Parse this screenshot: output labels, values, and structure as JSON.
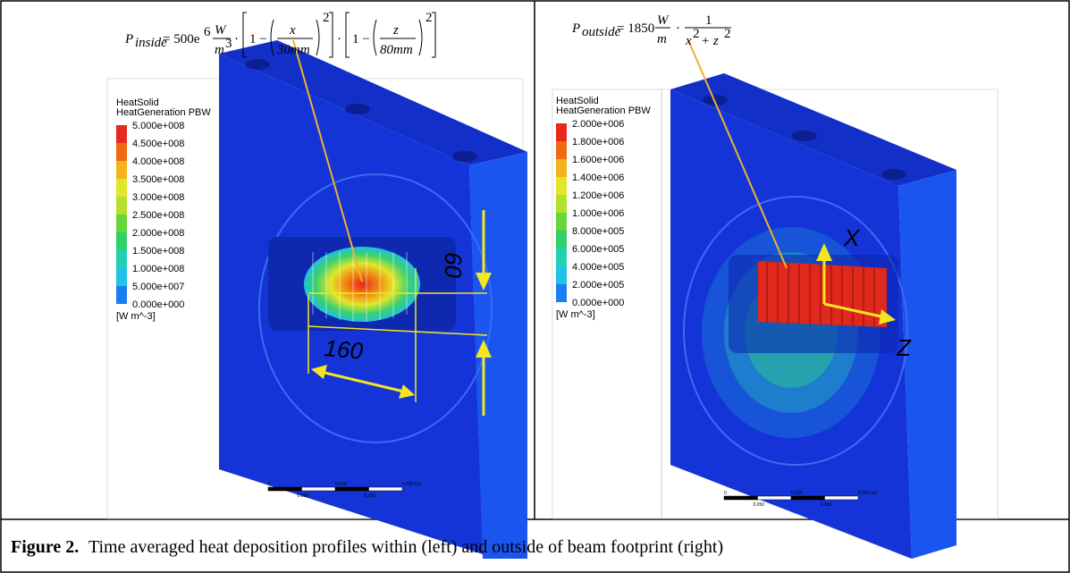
{
  "figure": {
    "panels": [
      {
        "equation": [
          "P",
          "inside",
          "= 500e",
          "6",
          "W",
          "m",
          "3",
          "·",
          "1 −",
          "x",
          "30mm",
          "2",
          "·",
          "1 −",
          "z",
          "80mm",
          "2"
        ],
        "legend": {
          "title": "HeatSolid",
          "subtitle": "HeatGeneration PBW",
          "levels": [
            "5.000e+008",
            "4.500e+008",
            "4.000e+008",
            "3.500e+008",
            "3.000e+008",
            "2.500e+008",
            "2.000e+008",
            "1.500e+008",
            "1.000e+008",
            "5.000e+007",
            "0.000e+000"
          ],
          "colors": [
            "#e8281c",
            "#f06a14",
            "#f5b21a",
            "#e2e628",
            "#b2e02c",
            "#66d63a",
            "#2fd06a",
            "#22d0b4",
            "#1ec4e8",
            "#1a7ef0",
            "#1a3cf0"
          ],
          "unit": "[W m^-3]"
        },
        "dimensions": [
          "60",
          "160"
        ],
        "scale_bar": {
          "top": [
            "0",
            "0.100",
            "0.200 (m)"
          ],
          "bottom": [
            "0.050",
            "0.150"
          ]
        }
      },
      {
        "equation": [
          "P",
          "outside",
          "= 1850",
          "W",
          "m",
          "·",
          "1",
          "x",
          "2",
          "+ z",
          "2"
        ],
        "legend": {
          "title": "HeatSolid",
          "subtitle": "HeatGeneration PBW",
          "levels": [
            "2.000e+006",
            "1.800e+006",
            "1.600e+006",
            "1.400e+006",
            "1.200e+006",
            "1.000e+006",
            "8.000e+005",
            "6.000e+005",
            "4.000e+005",
            "2.000e+005",
            "0.000e+000"
          ],
          "colors": [
            "#e8281c",
            "#f06a14",
            "#f5b21a",
            "#e2e628",
            "#b2e02c",
            "#66d63a",
            "#2fd06a",
            "#22d0b4",
            "#1ec4e8",
            "#1a7ef0",
            "#1a3cf0"
          ],
          "unit": "[W m^-3]"
        },
        "axes": [
          "X",
          "Z"
        ],
        "scale_bar": {
          "top": [
            "0",
            "0.100",
            "0.200 (m)"
          ],
          "bottom": [
            "0.050",
            "0.150"
          ]
        }
      }
    ],
    "caption": {
      "label": "Figure 2.",
      "text": "Time averaged heat deposition profiles within (left) and outside of beam footprint (right)"
    }
  }
}
